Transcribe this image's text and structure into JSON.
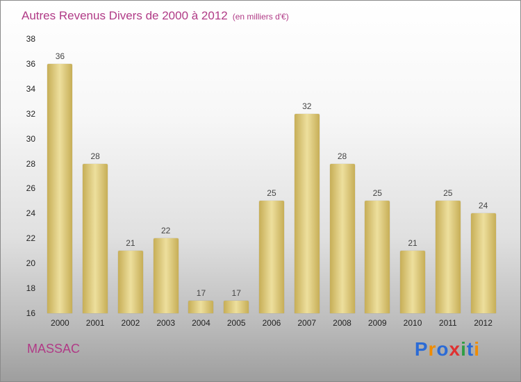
{
  "header": {
    "title": "Autres Revenus Divers de 2000 à 2012",
    "subtitle": "(en milliers d'€)"
  },
  "footer": {
    "company": "MASSAC",
    "brand": "Proxiti"
  },
  "logo": {
    "letters": [
      {
        "ch": "P",
        "color": "#2b6bd6"
      },
      {
        "ch": "r",
        "color": "#f08c00"
      },
      {
        "ch": "o",
        "color": "#2b6bd6"
      },
      {
        "ch": "x",
        "color": "#e03131"
      },
      {
        "ch": "i",
        "color": "#2f9e44"
      },
      {
        "ch": "t",
        "color": "#2b6bd6"
      },
      {
        "ch": "i",
        "color": "#f08c00"
      }
    ]
  },
  "colors": {
    "accent_magenta": "#b03a86",
    "bar_edge": "#c7ae57",
    "bar_mid": "#eddf9d",
    "axis_text": "#222222",
    "value_label": "#444444"
  },
  "chart_data": {
    "type": "bar",
    "title": "Autres Revenus Divers de 2000 à 2012",
    "subtitle": "(en milliers d'€)",
    "categories": [
      "2000",
      "2001",
      "2002",
      "2003",
      "2004",
      "2005",
      "2006",
      "2007",
      "2008",
      "2009",
      "2010",
      "2011",
      "2012"
    ],
    "values": [
      36,
      28,
      21,
      22,
      17,
      17,
      25,
      32,
      28,
      25,
      21,
      25,
      24
    ],
    "xlabel": "",
    "ylabel": "",
    "ylim": [
      16,
      38
    ],
    "ytick_step": 2,
    "grid": false,
    "legend": false,
    "bar_color_edge": "#c7ae57",
    "bar_color_mid": "#eddf9d",
    "value_labels_shown": true
  }
}
